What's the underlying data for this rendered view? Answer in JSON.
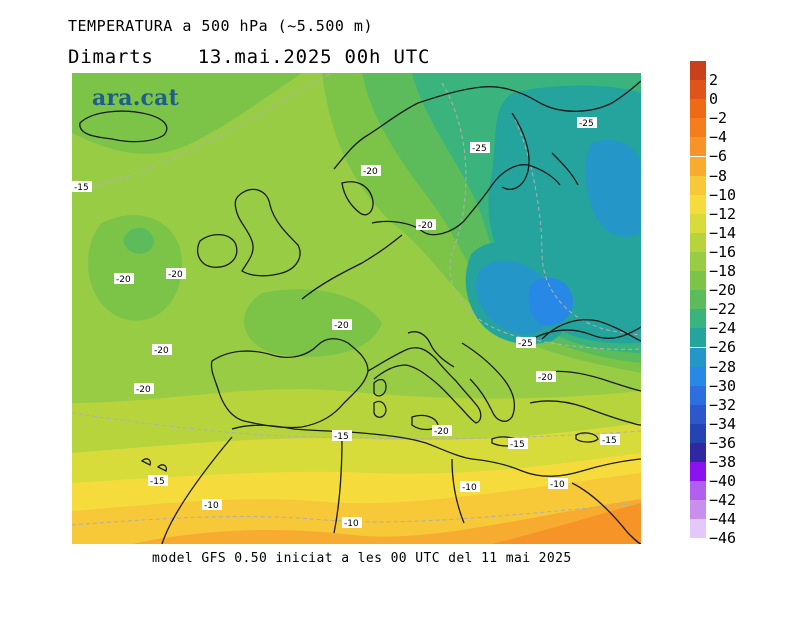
{
  "title": "TEMPERATURA a 500 hPa (~5.500 m)",
  "day": "Dimarts",
  "datetime": "13.mai.2025 00h UTC",
  "logo": "ara.cat",
  "footer": "model GFS 0.50 iniciat a les 00 UTC del 11 mai 2025",
  "legend": {
    "labels": [
      "2",
      "0",
      "−2",
      "−4",
      "−6",
      "−8",
      "−10",
      "−12",
      "−14",
      "−16",
      "−18",
      "−20",
      "−22",
      "−24",
      "−26",
      "−28",
      "−30",
      "−32",
      "−34",
      "−36",
      "−38",
      "−40",
      "−42",
      "−44",
      "−46"
    ],
    "colors": [
      "#c8401c",
      "#de541a",
      "#ef6a14",
      "#f57e1c",
      "#f79428",
      "#f7ac30",
      "#f7c838",
      "#f5dc3c",
      "#d8dc3a",
      "#b8d43c",
      "#98cc44",
      "#7cc448",
      "#5cbc5c",
      "#3ab47c",
      "#24a49c",
      "#2496c8",
      "#2888e6",
      "#2c70e0",
      "#2c58cc",
      "#2444b4",
      "#3028a0",
      "#8a14f0",
      "#b060ec",
      "#c890ec",
      "#e4c8f8"
    ]
  },
  "contour_labels": [
    {
      "text": "-15"
    },
    {
      "text": "-20"
    },
    {
      "text": "-25"
    },
    {
      "text": "-25"
    },
    {
      "text": "-20"
    },
    {
      "text": "-20"
    },
    {
      "text": "-20"
    },
    {
      "text": "-20"
    },
    {
      "text": "-20"
    },
    {
      "text": "-20"
    },
    {
      "text": "-20"
    },
    {
      "text": "-25"
    },
    {
      "text": "-20"
    },
    {
      "text": "-15"
    },
    {
      "text": "-15"
    },
    {
      "text": "-15"
    },
    {
      "text": "-15"
    },
    {
      "text": "-10"
    },
    {
      "text": "-10"
    },
    {
      "text": "-10"
    },
    {
      "text": "-10"
    }
  ]
}
